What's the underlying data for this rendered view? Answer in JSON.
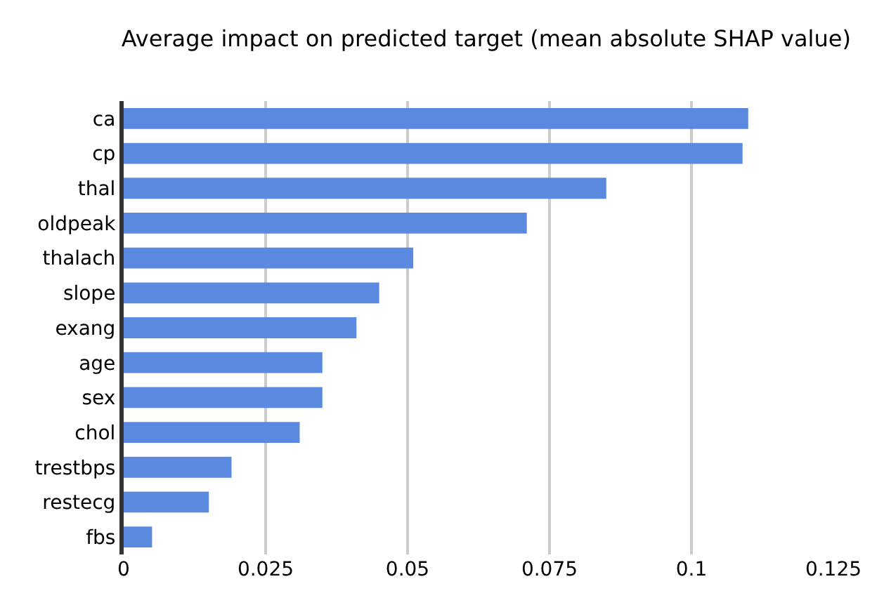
{
  "chart_data": {
    "type": "bar",
    "orientation": "horizontal",
    "title": "Average impact on predicted target (mean absolute SHAP value)",
    "categories": [
      "ca",
      "cp",
      "thal",
      "oldpeak",
      "thalach",
      "slope",
      "exang",
      "age",
      "sex",
      "chol",
      "trestbps",
      "restecg",
      "fbs"
    ],
    "values": [
      0.11,
      0.109,
      0.085,
      0.071,
      0.051,
      0.045,
      0.041,
      0.035,
      0.035,
      0.031,
      0.019,
      0.015,
      0.005
    ],
    "color": "#5b89df",
    "xlim": [
      0,
      0.125
    ],
    "xticks": [
      0,
      0.025,
      0.05,
      0.075,
      0.1,
      0.125
    ],
    "grid": "x"
  }
}
